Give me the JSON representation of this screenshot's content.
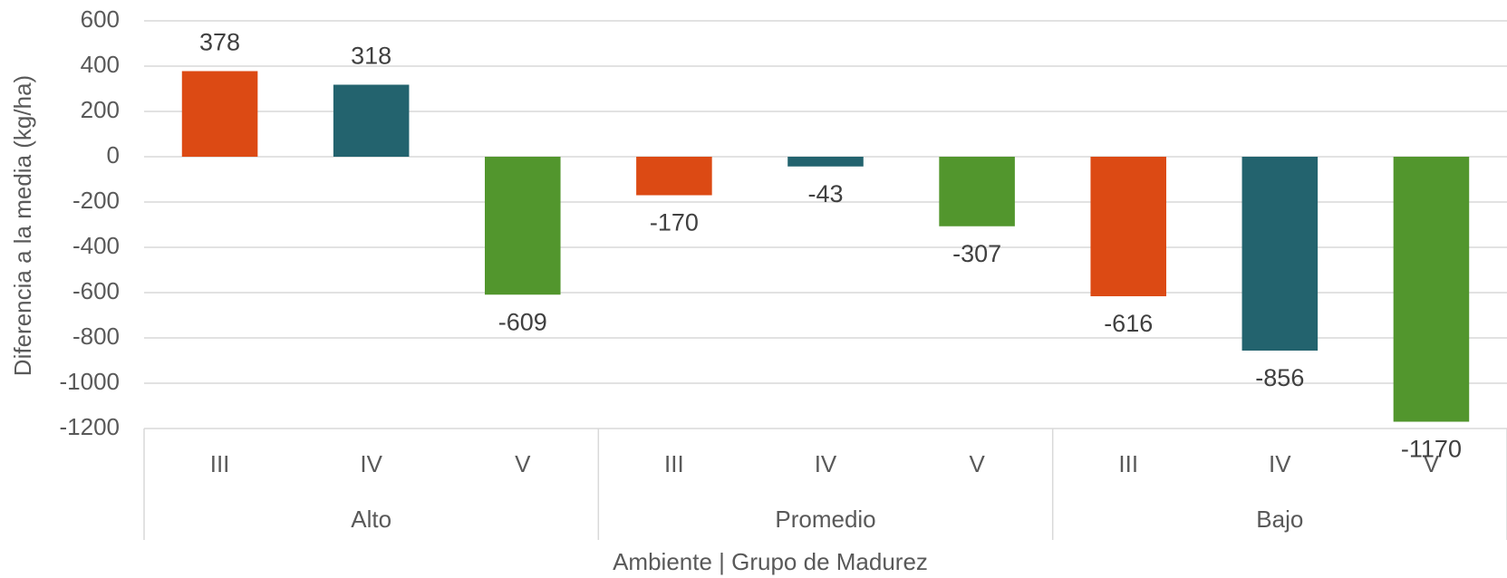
{
  "chart_data": {
    "type": "bar",
    "categories": [
      "III",
      "IV",
      "V",
      "III",
      "IV",
      "V",
      "III",
      "IV",
      "V"
    ],
    "groups": [
      "Alto",
      "Promedio",
      "Bajo"
    ],
    "values": [
      378,
      318,
      -609,
      -170,
      -43,
      -307,
      -616,
      -856,
      -1170
    ],
    "colors": [
      "#dc4a14",
      "#23636e",
      "#52962d",
      "#dc4a14",
      "#23636e",
      "#52962d",
      "#dc4a14",
      "#23636e",
      "#52962d"
    ],
    "ylabel": "Diferencia a la media (kg/ha)",
    "xlabel": "Ambiente | Grupo de Madurez",
    "ylim": [
      -1200,
      600
    ],
    "yticks": [
      -1200,
      -1000,
      -800,
      -600,
      -400,
      -200,
      0,
      200,
      400,
      600
    ],
    "grid": true
  }
}
